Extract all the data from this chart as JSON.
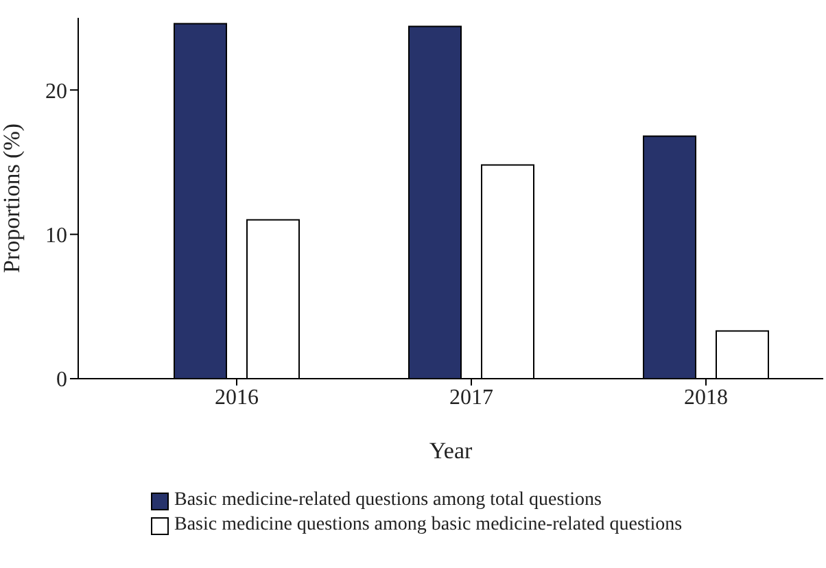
{
  "chart_data": {
    "type": "bar",
    "xlabel": "Year",
    "ylabel": "Proportions (%)",
    "categories": [
      "2016",
      "2017",
      "2018"
    ],
    "series": [
      {
        "name": "Basic medicine-related questions among total questions",
        "color": "#27336b",
        "values": [
          24.6,
          24.4,
          16.8
        ]
      },
      {
        "name": "Basic medicine questions among basic medicine-related questions",
        "color": "#ffffff",
        "values": [
          11.0,
          14.8,
          3.3
        ]
      }
    ],
    "ylim": [
      0,
      25
    ],
    "yticks": [
      0,
      10,
      20
    ],
    "grid": false,
    "legend": "bottom"
  }
}
